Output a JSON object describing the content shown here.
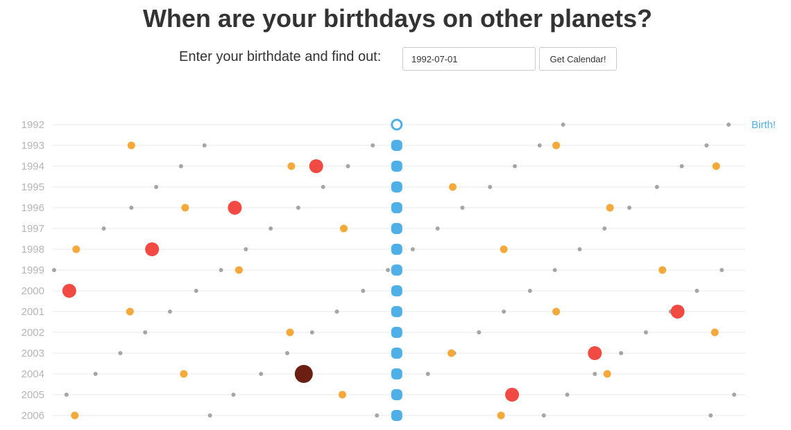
{
  "header": {
    "title": "When are your birthdays on other planets?"
  },
  "form": {
    "prompt": "Enter your birthdate and find out:",
    "date_value": "1992-07-01",
    "button_label": "Get Calendar!"
  },
  "chart_data": {
    "type": "scatter",
    "years": [
      "1992",
      "1993",
      "1994",
      "1995",
      "1996",
      "1997",
      "1998",
      "1999",
      "2000",
      "2001",
      "2002",
      "2003",
      "2004",
      "2005",
      "2006"
    ],
    "birth_label": "Birth!",
    "colors": {
      "earth": "#4fb0e8",
      "mercury": "#a5a5a5",
      "venus": "#f5a93a",
      "mars": "#f04a43",
      "jupiter": "#6b1e12",
      "gridline": "#e8e8e8"
    },
    "series": [
      {
        "key": "earth",
        "points": [
          [
            "1992",
            0.4988
          ],
          [
            "1993",
            0.4988
          ],
          [
            "1994",
            0.4988
          ],
          [
            "1995",
            0.4988
          ],
          [
            "1996",
            0.4988
          ],
          [
            "1997",
            0.4988
          ],
          [
            "1998",
            0.4988
          ],
          [
            "1999",
            0.4988
          ],
          [
            "2000",
            0.4988
          ],
          [
            "2001",
            0.4988
          ],
          [
            "2002",
            0.4988
          ],
          [
            "2003",
            0.4988
          ],
          [
            "2004",
            0.4988
          ],
          [
            "2005",
            0.4988
          ],
          [
            "2006",
            0.4988
          ]
        ]
      },
      {
        "key": "mercury",
        "points": [
          [
            "1992",
            0.74
          ],
          [
            "1992",
            0.98
          ],
          [
            "1993",
            0.22
          ],
          [
            "1993",
            0.464
          ],
          [
            "1993",
            0.706
          ],
          [
            "1993",
            0.948
          ],
          [
            "1994",
            0.186
          ],
          [
            "1994",
            0.428
          ],
          [
            "1994",
            0.67
          ],
          [
            "1994",
            0.912
          ],
          [
            "1995",
            0.15
          ],
          [
            "1995",
            0.392
          ],
          [
            "1995",
            0.634
          ],
          [
            "1995",
            0.876
          ],
          [
            "1996",
            0.114
          ],
          [
            "1996",
            0.356
          ],
          [
            "1996",
            0.594
          ],
          [
            "1996",
            0.836
          ],
          [
            "1997",
            0.074
          ],
          [
            "1997",
            0.316
          ],
          [
            "1997",
            0.558
          ],
          [
            "1997",
            0.8
          ],
          [
            "1998",
            0.036
          ],
          [
            "1998",
            0.28
          ],
          [
            "1998",
            0.522
          ],
          [
            "1998",
            0.764
          ],
          [
            "1999",
            0.002
          ],
          [
            "1999",
            0.244
          ],
          [
            "1999",
            0.486
          ],
          [
            "1999",
            0.728
          ],
          [
            "1999",
            0.97
          ],
          [
            "2000",
            0.208
          ],
          [
            "2000",
            0.45
          ],
          [
            "2000",
            0.692
          ],
          [
            "2000",
            0.934
          ],
          [
            "2001",
            0.17
          ],
          [
            "2001",
            0.412
          ],
          [
            "2001",
            0.654
          ],
          [
            "2001",
            0.896
          ],
          [
            "2002",
            0.134
          ],
          [
            "2002",
            0.376
          ],
          [
            "2002",
            0.618
          ],
          [
            "2002",
            0.86
          ],
          [
            "2003",
            0.098
          ],
          [
            "2003",
            0.34
          ],
          [
            "2003",
            0.582
          ],
          [
            "2003",
            0.824
          ],
          [
            "2004",
            0.062
          ],
          [
            "2004",
            0.302
          ],
          [
            "2004",
            0.544
          ],
          [
            "2004",
            0.786
          ],
          [
            "2005",
            0.02
          ],
          [
            "2005",
            0.262
          ],
          [
            "2005",
            0.504
          ],
          [
            "2005",
            0.746
          ],
          [
            "2005",
            0.988
          ],
          [
            "2006",
            0.228
          ],
          [
            "2006",
            0.47
          ],
          [
            "2006",
            0.712
          ],
          [
            "2006",
            0.954
          ]
        ]
      },
      {
        "key": "venus",
        "points": [
          [
            "1993",
            0.114
          ],
          [
            "1993",
            0.73
          ],
          [
            "1994",
            0.346
          ],
          [
            "1994",
            0.962
          ],
          [
            "1995",
            0.58
          ],
          [
            "1996",
            0.192
          ],
          [
            "1996",
            0.808
          ],
          [
            "1997",
            0.422
          ],
          [
            "1998",
            0.034
          ],
          [
            "1998",
            0.654
          ],
          [
            "1999",
            0.27
          ],
          [
            "1999",
            0.884
          ],
          [
            "2000",
            0.5
          ],
          [
            "2001",
            0.112
          ],
          [
            "2001",
            0.73
          ],
          [
            "2002",
            0.344
          ],
          [
            "2002",
            0.96
          ],
          [
            "2003",
            0.578
          ],
          [
            "2004",
            0.19
          ],
          [
            "2004",
            0.804
          ],
          [
            "2005",
            0.42
          ],
          [
            "2006",
            0.032
          ],
          [
            "2006",
            0.65
          ]
        ]
      },
      {
        "key": "mars",
        "points": [
          [
            "1994",
            0.382
          ],
          [
            "1996",
            0.264
          ],
          [
            "1998",
            0.144
          ],
          [
            "2000",
            0.024
          ],
          [
            "2001",
            0.906
          ],
          [
            "2003",
            0.786
          ],
          [
            "2005",
            0.666
          ]
        ]
      },
      {
        "key": "jupiter",
        "points": [
          [
            "2004",
            0.364
          ]
        ]
      }
    ]
  }
}
